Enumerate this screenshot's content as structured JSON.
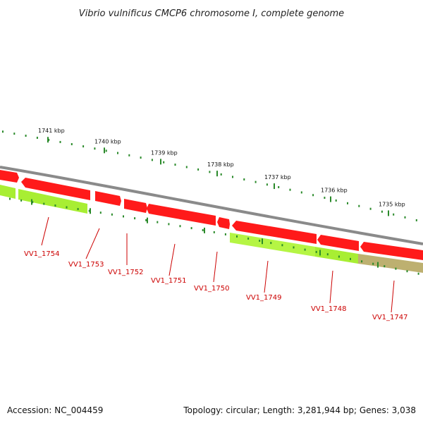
{
  "title": "Vibrio vulnificus CMCP6 chromosome I, complete genome",
  "footer": {
    "accession": "Accession: NC_004459",
    "summary": "Topology: circular; Length: 3,281,944 bp; Genes: 3,038"
  },
  "colors": {
    "backbone": "#8a8a8a",
    "forward_gene": "#ff0000",
    "reverse_gene": "#99dd22",
    "reverse_gene_alt": "#b8aa66",
    "ticks": "#2a8a2a",
    "label": "#cc0000"
  },
  "kbp_labels": [
    {
      "text": "1741 kbp",
      "kbp": 1741
    },
    {
      "text": "1740 kbp",
      "kbp": 1740
    },
    {
      "text": "1739 kbp",
      "kbp": 1739
    },
    {
      "text": "1738 kbp",
      "kbp": 1738
    },
    {
      "text": "1737 kbp",
      "kbp": 1737
    },
    {
      "text": "1736 kbp",
      "kbp": 1736
    },
    {
      "text": "1735 kbp",
      "kbp": 1735
    }
  ],
  "genes": [
    {
      "label": "VV1_1754"
    },
    {
      "label": "VV1_1753"
    },
    {
      "label": "VV1_1752"
    },
    {
      "label": "VV1_1751"
    },
    {
      "label": "VV1_1750"
    },
    {
      "label": "VV1_1749"
    },
    {
      "label": "VV1_1748"
    },
    {
      "label": "VV1_1747"
    }
  ]
}
